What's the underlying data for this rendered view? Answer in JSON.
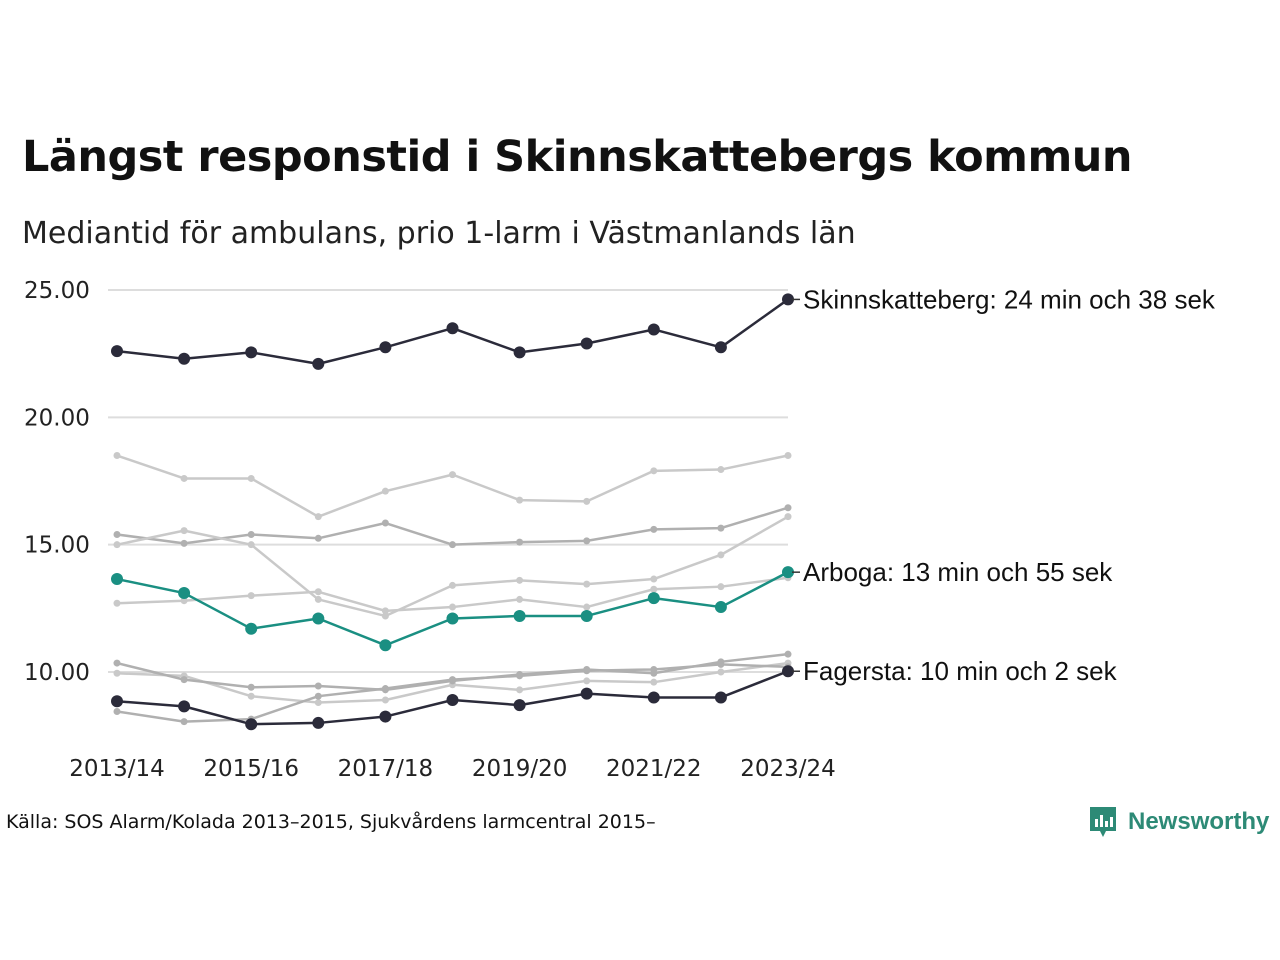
{
  "title": "Längst responstid i Skinnskattebergs kommun",
  "subtitle": "Mediantid för ambulans, prio 1-larm i Västmanlands län",
  "source": "Källa: SOS Alarm/Kolada 2013–2015, Sjukvårdens larmcentral 2015–",
  "brand": {
    "name": "Newsworthy",
    "icon": "newsworthy-logo-icon"
  },
  "colors": {
    "dark": "#2b2b3a",
    "accent": "#1a8f82",
    "gray_light": "#c9c9c9",
    "gray_mid": "#b0b0b0",
    "grid": "#dddddd"
  },
  "chart_data": {
    "type": "line",
    "x": [
      "2013/14",
      "2014/15",
      "2015/16",
      "2016/17",
      "2017/18",
      "2018/19",
      "2019/20",
      "2020/21",
      "2021/22",
      "2022/23",
      "2023/24"
    ],
    "x_tick_labels": [
      "2013/14",
      "2015/16",
      "2017/18",
      "2019/20",
      "2021/22",
      "2023/24"
    ],
    "y_ticks": [
      "10.00",
      "15.00",
      "20.00",
      "25.00"
    ],
    "ylim": [
      7.5,
      25.6
    ],
    "grid": "horizontal",
    "series": [
      {
        "style": "gray_light",
        "values": [
          18.5,
          17.6,
          17.6,
          16.1,
          17.1,
          17.75,
          16.75,
          16.7,
          17.9,
          17.95,
          18.5
        ]
      },
      {
        "style": "gray_mid",
        "values": [
          15.4,
          15.05,
          15.4,
          15.25,
          15.85,
          15.0,
          15.1,
          15.15,
          15.6,
          15.65,
          16.45
        ]
      },
      {
        "style": "gray_light",
        "values": [
          15.0,
          15.55,
          15.0,
          12.85,
          12.2,
          13.4,
          13.6,
          13.45,
          13.65,
          14.6,
          16.1
        ]
      },
      {
        "style": "gray_light",
        "values": [
          12.7,
          12.8,
          13.0,
          13.15,
          12.4,
          12.55,
          12.85,
          12.55,
          13.25,
          13.35,
          13.7
        ]
      },
      {
        "style": "gray_light",
        "values": [
          9.95,
          9.85,
          9.05,
          8.8,
          8.9,
          9.5,
          9.3,
          9.65,
          9.6,
          10.0,
          10.35
        ]
      },
      {
        "style": "gray_mid",
        "values": [
          10.35,
          9.7,
          9.4,
          9.45,
          9.3,
          9.65,
          9.9,
          10.1,
          9.95,
          10.4,
          10.7
        ]
      },
      {
        "style": "gray_mid",
        "values": [
          8.45,
          8.05,
          8.15,
          9.05,
          9.35,
          9.7,
          9.85,
          10.05,
          10.1,
          10.3,
          10.2
        ]
      },
      {
        "name": "Arboga",
        "style": "accent",
        "label": "Arboga: 13 min och 55 sek",
        "values": [
          13.65,
          13.1,
          11.7,
          12.1,
          11.05,
          12.1,
          12.2,
          12.2,
          12.9,
          12.55,
          13.92
        ]
      },
      {
        "name": "Fagersta",
        "style": "dark",
        "label": "Fagersta: 10 min och 2 sek",
        "values": [
          8.85,
          8.65,
          7.95,
          8.0,
          8.25,
          8.9,
          8.7,
          9.15,
          9.0,
          9.0,
          10.03
        ]
      },
      {
        "name": "Skinnskatteberg",
        "style": "dark",
        "label": "Skinnskatteberg: 24 min och 38 sek",
        "values": [
          22.6,
          22.3,
          22.55,
          22.1,
          22.75,
          23.5,
          22.55,
          22.9,
          23.45,
          22.75,
          24.63
        ]
      }
    ]
  }
}
